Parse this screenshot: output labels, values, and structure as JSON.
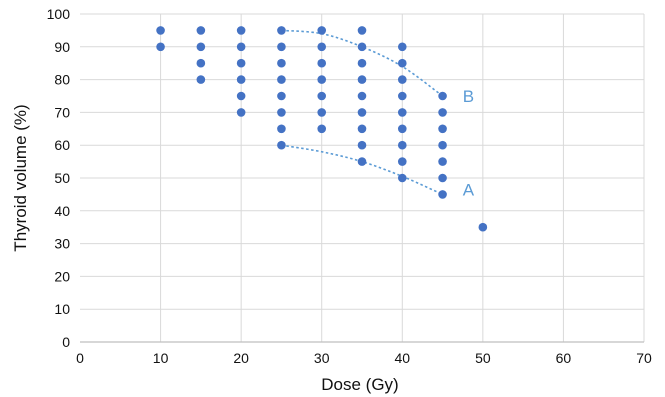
{
  "chart_data": {
    "type": "scatter",
    "xlabel": "Dose (Gy)",
    "ylabel": "Thyroid volume (%)",
    "xlim": [
      0,
      70
    ],
    "ylim": [
      0,
      100
    ],
    "x_ticks": [
      "0",
      "10",
      "20",
      "30",
      "40",
      "50",
      "60",
      "70"
    ],
    "y_ticks": [
      "0",
      "10",
      "20",
      "30",
      "40",
      "50",
      "60",
      "70",
      "80",
      "90",
      "100"
    ],
    "grid": true,
    "marker_color": "#4472C4",
    "curve_color": "#5B9BD5",
    "points": [
      [
        10,
        95
      ],
      [
        10,
        90
      ],
      [
        15,
        95
      ],
      [
        15,
        90
      ],
      [
        15,
        85
      ],
      [
        15,
        80
      ],
      [
        20,
        95
      ],
      [
        20,
        90
      ],
      [
        20,
        85
      ],
      [
        20,
        80
      ],
      [
        20,
        75
      ],
      [
        20,
        70
      ],
      [
        25,
        95
      ],
      [
        25,
        90
      ],
      [
        25,
        85
      ],
      [
        25,
        80
      ],
      [
        25,
        75
      ],
      [
        25,
        70
      ],
      [
        25,
        65
      ],
      [
        25,
        60
      ],
      [
        30,
        95
      ],
      [
        30,
        90
      ],
      [
        30,
        85
      ],
      [
        30,
        80
      ],
      [
        30,
        75
      ],
      [
        30,
        70
      ],
      [
        30,
        65
      ],
      [
        35,
        95
      ],
      [
        35,
        90
      ],
      [
        35,
        85
      ],
      [
        35,
        80
      ],
      [
        35,
        75
      ],
      [
        35,
        70
      ],
      [
        35,
        65
      ],
      [
        35,
        60
      ],
      [
        35,
        55
      ],
      [
        40,
        90
      ],
      [
        40,
        85
      ],
      [
        40,
        80
      ],
      [
        40,
        75
      ],
      [
        40,
        70
      ],
      [
        40,
        65
      ],
      [
        40,
        60
      ],
      [
        40,
        55
      ],
      [
        40,
        50
      ],
      [
        45,
        75
      ],
      [
        45,
        70
      ],
      [
        45,
        65
      ],
      [
        45,
        60
      ],
      [
        45,
        55
      ],
      [
        45,
        50
      ],
      [
        45,
        45
      ],
      [
        50,
        35
      ]
    ],
    "curves": [
      {
        "label": "B",
        "label_at": [
          47.5,
          75
        ],
        "points": [
          [
            25,
            95
          ],
          [
            30,
            94
          ],
          [
            35,
            90
          ],
          [
            40,
            84
          ],
          [
            45,
            75
          ]
        ]
      },
      {
        "label": "A",
        "label_at": [
          47.5,
          46.5
        ],
        "points": [
          [
            25,
            60
          ],
          [
            30,
            58
          ],
          [
            35,
            55
          ],
          [
            40,
            50.5
          ],
          [
            45,
            45
          ]
        ]
      }
    ]
  }
}
